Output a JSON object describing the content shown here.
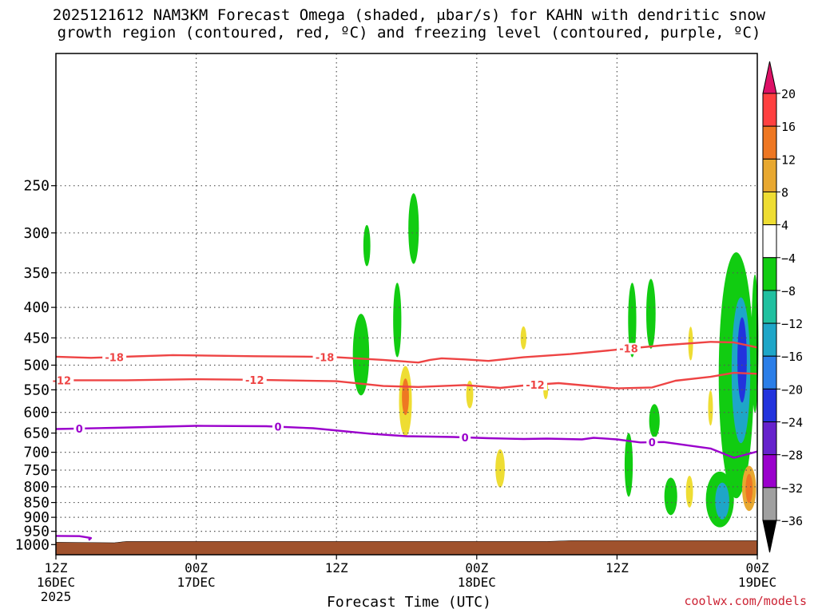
{
  "title_line1": "2025121612 NAM3KM Forecast Omega (shaded, μbar/s) for KAHN with dendritic snow",
  "title_line2": "growth region (contoured, red, ºC) and freezing level (contoured, purple, ºC)",
  "credit": "coolwx.com/models",
  "colors": {
    "ground": "#a0522d",
    "dgz_line": "#ee4444",
    "freezing_line": "#9a00cc",
    "grid": "#555555"
  },
  "chart_data": {
    "type": "heatmap",
    "xlabel": "Forecast Time (UTC)",
    "ylabel": "",
    "xlim_hours": [
      0,
      60
    ],
    "ylim_hPa": [
      1040,
      150
    ],
    "x_ticks": [
      {
        "hour": 0,
        "label": "12Z",
        "sub": "16DEC",
        "sub2": "2025"
      },
      {
        "hour": 12,
        "label": "00Z",
        "sub": "17DEC",
        "sub2": ""
      },
      {
        "hour": 24,
        "label": "12Z",
        "sub": "",
        "sub2": ""
      },
      {
        "hour": 36,
        "label": "00Z",
        "sub": "18DEC",
        "sub2": ""
      },
      {
        "hour": 48,
        "label": "12Z",
        "sub": "",
        "sub2": ""
      },
      {
        "hour": 60,
        "label": "00Z",
        "sub": "19DEC",
        "sub2": ""
      }
    ],
    "y_ticks": [
      250,
      300,
      350,
      400,
      450,
      500,
      550,
      600,
      650,
      700,
      750,
      800,
      850,
      900,
      950,
      1000
    ],
    "ground_hPa": [
      [
        0,
        991
      ],
      [
        5,
        993
      ],
      [
        6,
        988
      ],
      [
        42,
        988
      ],
      [
        44,
        985
      ],
      [
        60,
        985
      ]
    ],
    "contours": [
      {
        "name": "-18",
        "label": "-18",
        "color": "#ee4444",
        "points": [
          [
            0,
            484
          ],
          [
            3,
            486
          ],
          [
            10,
            481
          ],
          [
            17,
            483
          ],
          [
            22,
            484
          ],
          [
            24,
            485
          ],
          [
            28,
            490
          ],
          [
            31,
            495
          ],
          [
            32,
            490
          ],
          [
            33,
            487
          ],
          [
            35,
            489
          ],
          [
            37,
            492
          ],
          [
            40,
            485
          ],
          [
            44,
            479
          ],
          [
            48,
            471
          ],
          [
            52,
            463
          ],
          [
            56,
            457
          ],
          [
            58,
            458
          ],
          [
            60,
            467
          ]
        ],
        "label_hours": [
          5,
          23,
          49
        ]
      },
      {
        "name": "-12",
        "label": "-12",
        "color": "#ee4444",
        "points": [
          [
            0,
            530
          ],
          [
            6,
            530
          ],
          [
            12,
            528
          ],
          [
            17,
            529
          ],
          [
            24,
            532
          ],
          [
            28,
            542
          ],
          [
            31,
            544
          ],
          [
            35,
            540
          ],
          [
            38,
            546
          ],
          [
            40,
            541
          ],
          [
            43,
            536
          ],
          [
            48,
            547
          ],
          [
            51,
            545
          ],
          [
            53,
            531
          ],
          [
            56,
            523
          ],
          [
            58,
            515
          ],
          [
            60,
            517
          ]
        ],
        "label_hours": [
          0.5,
          17,
          41
        ]
      },
      {
        "name": "0",
        "label": "0",
        "color": "#9a00cc",
        "points": [
          [
            0,
            640
          ],
          [
            5,
            637
          ],
          [
            12,
            632
          ],
          [
            18,
            633
          ],
          [
            22,
            638
          ],
          [
            27,
            652
          ],
          [
            30,
            658
          ],
          [
            34,
            660
          ],
          [
            37,
            663
          ],
          [
            40,
            665
          ],
          [
            42,
            664
          ],
          [
            45,
            666
          ],
          [
            46,
            662
          ],
          [
            48,
            666
          ],
          [
            50,
            674
          ],
          [
            52,
            673
          ],
          [
            56,
            690
          ],
          [
            58,
            715
          ],
          [
            60,
            698
          ]
        ],
        "label_hours": [
          2,
          19,
          35,
          51
        ]
      },
      {
        "name": "0-low",
        "label": "",
        "color": "#9a00cc",
        "points": [
          [
            0,
            967
          ],
          [
            2,
            968
          ],
          [
            3,
            975
          ],
          [
            2.8,
            983
          ]
        ],
        "label_hours": []
      }
    ],
    "omega_cells": [
      {
        "hour": 26.1,
        "p": 480,
        "rw": 0.7,
        "rp": 75,
        "value": -6
      },
      {
        "hour": 29.9,
        "p": 575,
        "rw": 0.55,
        "rp": 78,
        "value": 6
      },
      {
        "hour": 29.9,
        "p": 565,
        "rw": 0.3,
        "rp": 40,
        "value": 12
      },
      {
        "hour": 29.2,
        "p": 420,
        "rw": 0.35,
        "rp": 60,
        "value": -6
      },
      {
        "hour": 30.6,
        "p": 295,
        "rw": 0.45,
        "rp": 40,
        "value": -6
      },
      {
        "hour": 26.6,
        "p": 315,
        "rw": 0.3,
        "rp": 25,
        "value": -6
      },
      {
        "hour": 35.4,
        "p": 560,
        "rw": 0.3,
        "rp": 30,
        "value": 6
      },
      {
        "hour": 38.0,
        "p": 745,
        "rw": 0.4,
        "rp": 55,
        "value": 6
      },
      {
        "hour": 40.0,
        "p": 450,
        "rw": 0.25,
        "rp": 20,
        "value": 6
      },
      {
        "hour": 41.9,
        "p": 550,
        "rw": 0.15,
        "rp": 20,
        "value": 6
      },
      {
        "hour": 49.3,
        "p": 420,
        "rw": 0.35,
        "rp": 60,
        "value": -6
      },
      {
        "hour": 50.9,
        "p": 410,
        "rw": 0.4,
        "rp": 55,
        "value": -6
      },
      {
        "hour": 49.0,
        "p": 735,
        "rw": 0.35,
        "rp": 90,
        "value": -6
      },
      {
        "hour": 51.2,
        "p": 620,
        "rw": 0.45,
        "rp": 40,
        "value": -6
      },
      {
        "hour": 52.6,
        "p": 830,
        "rw": 0.55,
        "rp": 60,
        "value": -6
      },
      {
        "hour": 54.2,
        "p": 815,
        "rw": 0.3,
        "rp": 50,
        "value": 6
      },
      {
        "hour": 54.3,
        "p": 460,
        "rw": 0.15,
        "rp": 30,
        "value": 6
      },
      {
        "hour": 56.0,
        "p": 590,
        "rw": 0.2,
        "rp": 40,
        "value": 6
      },
      {
        "hour": 58.2,
        "p": 520,
        "rw": 1.5,
        "rp": 230,
        "value": -6
      },
      {
        "hour": 58.6,
        "p": 510,
        "rw": 0.8,
        "rp": 140,
        "value": -14
      },
      {
        "hour": 58.7,
        "p": 490,
        "rw": 0.4,
        "rp": 80,
        "value": -22
      },
      {
        "hour": 56.8,
        "p": 840,
        "rw": 1.2,
        "rp": 90,
        "value": -6
      },
      {
        "hour": 57.0,
        "p": 845,
        "rw": 0.6,
        "rp": 60,
        "value": -14
      },
      {
        "hour": 59.3,
        "p": 805,
        "rw": 0.6,
        "rp": 70,
        "value": 8
      },
      {
        "hour": 59.3,
        "p": 805,
        "rw": 0.3,
        "rp": 45,
        "value": 14
      },
      {
        "hour": 59.8,
        "p": 460,
        "rw": 0.3,
        "rp": 120,
        "value": -6
      }
    ],
    "colorbar": {
      "levels": [
        "20",
        "16",
        "12",
        "8",
        "4",
        "−4",
        "−8",
        "−12",
        "−16",
        "−20",
        "−24",
        "−28",
        "−32",
        "−36"
      ],
      "colors": [
        "#dd1166",
        "#ff4040",
        "#ee7722",
        "#e8a830",
        "#eedd33",
        "#ffffff",
        "#11cc11",
        "#20c0a0",
        "#1ea6c8",
        "#2b7ee8",
        "#2233dd",
        "#6622cc",
        "#9a00cc",
        "#a0a0a0",
        "#000000"
      ]
    }
  }
}
